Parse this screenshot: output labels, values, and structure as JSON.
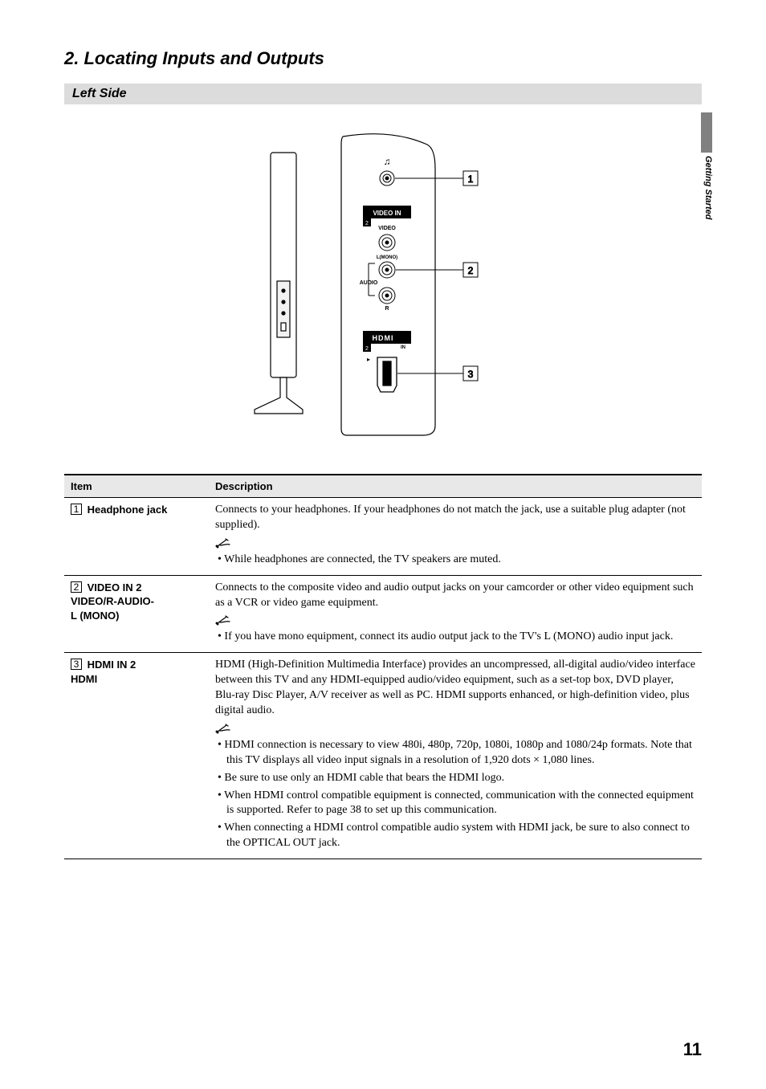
{
  "section_title": "2. Locating Inputs and Outputs",
  "subsection": "Left Side",
  "side_tab": "Getting Started",
  "page_number": "11",
  "diagram": {
    "callouts": [
      "1",
      "2",
      "3"
    ],
    "labels": {
      "video_in": "VIDEO IN",
      "video_in_num": "2",
      "video": "VIDEO",
      "lmono": "L(MONO)",
      "audio": "AUDIO",
      "r": "R",
      "hdmi_word": "HDMI",
      "hdmi_in": "IN",
      "hdmi_in_num": "2"
    }
  },
  "table": {
    "headers": {
      "item": "Item",
      "desc": "Description"
    },
    "rows": [
      {
        "num": "1",
        "item_lines": [
          "Headphone jack"
        ],
        "desc_main": "Connects to your headphones. If your headphones do not match the jack, use a suitable plug adapter (not supplied).",
        "notes": [
          "While headphones are connected, the TV speakers are muted."
        ]
      },
      {
        "num": "2",
        "item_lines": [
          "VIDEO IN 2",
          "VIDEO/R-AUDIO-",
          "L (MONO)"
        ],
        "desc_main": "Connects to the composite video and audio output jacks on your camcorder or other video equipment such as a VCR or video game equipment.",
        "notes": [
          "If you have mono equipment, connect its audio output jack to the TV's L (MONO) audio input jack."
        ]
      },
      {
        "num": "3",
        "item_lines": [
          "HDMI IN 2",
          "HDMI"
        ],
        "desc_main": "HDMI (High-Definition Multimedia Interface) provides an uncompressed, all-digital audio/video interface between this TV and any HDMI-equipped audio/video equipment, such as a set-top box, DVD player, Blu-ray Disc Player, A/V receiver as well as PC. HDMI supports enhanced, or high-definition video, plus digital audio.",
        "notes": [
          "HDMI connection is necessary to view 480i, 480p, 720p, 1080i, 1080p and 1080/24p formats. Note that this TV displays all video input signals in a resolution of 1,920 dots × 1,080 lines.",
          "Be sure to use only an HDMI cable that bears the HDMI logo.",
          "When HDMI control compatible equipment is connected, communication with the connected equipment is supported. Refer to page 38 to set up this communication.",
          "When connecting a HDMI control compatible audio system with HDMI jack, be sure to also connect to the OPTICAL OUT jack."
        ]
      }
    ]
  }
}
